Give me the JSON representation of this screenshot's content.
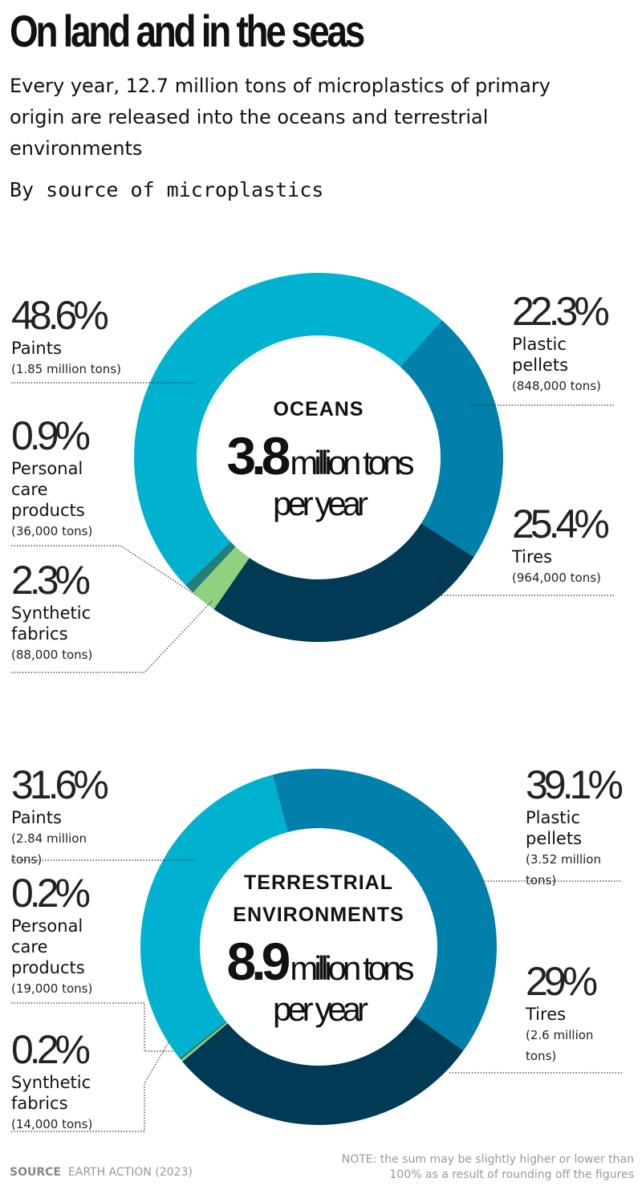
{
  "header": {
    "title": "On land and in the seas",
    "subtitle": "Every year, 12.7 million tons of microplastics of primary origin are released into the oceans and terrestrial environments",
    "section_label": "By source of microplastics"
  },
  "chart_data": [
    {
      "type": "donut",
      "center_label": "OCEANS",
      "total": 3.8,
      "total_unit": "million tons",
      "total_period": "per year",
      "categories": [
        "Plastic pellets",
        "Tires",
        "Synthetic fabrics",
        "Personal care products",
        "Paints"
      ],
      "values": [
        22.3,
        25.4,
        2.3,
        0.9,
        48.6
      ],
      "value_labels": [
        "22.3%",
        "25.4%",
        "2.3%",
        "0.9%",
        "48.6%"
      ],
      "details": [
        "(848,000 tons)",
        "(964,000 tons)",
        "(88,000 tons)",
        "(36,000 tons)",
        "(1.85 million tons)"
      ],
      "colors": [
        "#0080aa",
        "#003a55",
        "#8fd17e",
        "#237f78",
        "#00b2d0"
      ]
    },
    {
      "type": "donut",
      "center_label": "TERRESTRIAL ENVIRONMENTS",
      "total": 8.9,
      "total_unit": "million tons",
      "total_period": "per year",
      "categories": [
        "Plastic pellets",
        "Tires",
        "Synthetic fabrics",
        "Personal care products",
        "Paints"
      ],
      "values": [
        39.1,
        29,
        0.2,
        0.2,
        31.6
      ],
      "value_labels": [
        "39.1%",
        "29%",
        "0.2%",
        "0.2%",
        "31.6%"
      ],
      "details": [
        "(3.52 million tons)",
        "(2.6 million tons)",
        "(14,000 tons)",
        "(19,000 tons)",
        "(2.84 million tons)"
      ],
      "colors": [
        "#0080aa",
        "#003a55",
        "#8fd17e",
        "#237f78",
        "#00b2d0"
      ]
    }
  ],
  "footer": {
    "source_label": "SOURCE",
    "source": "EARTH ACTION (2023)",
    "note": "NOTE: the sum may be slightly higher or lower than 100% as a result of rounding off the figures"
  }
}
